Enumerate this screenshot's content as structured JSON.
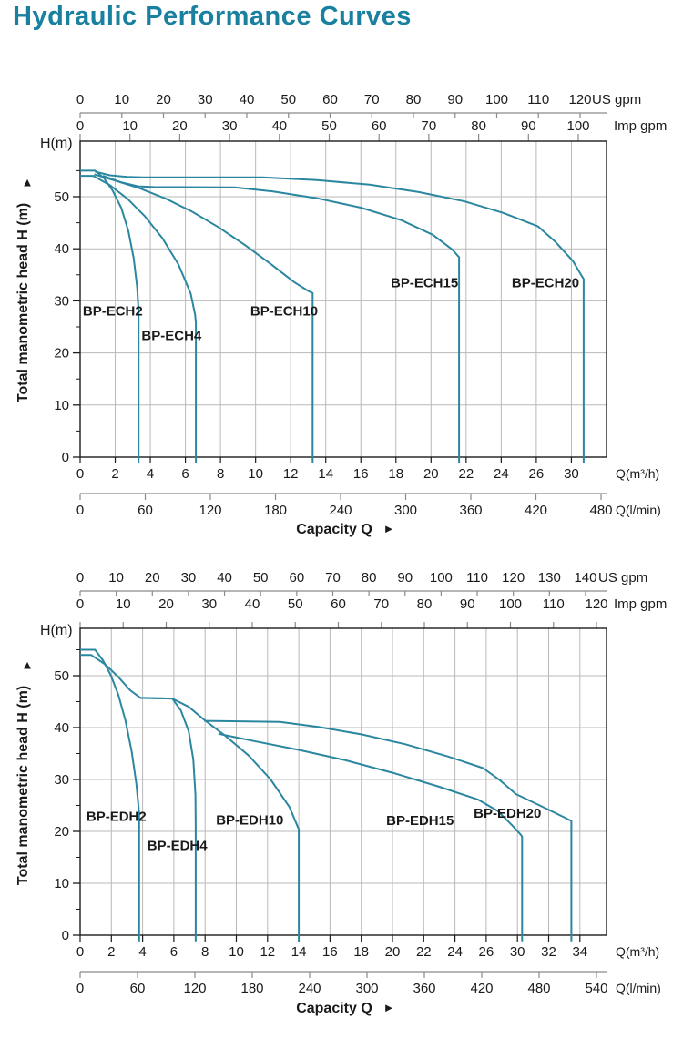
{
  "page_title": "Hydraulic Performance Curves",
  "colors": {
    "title": "#19809f",
    "curve": "#2b87a0",
    "grid": "#b9b9b9",
    "axis": "#1c1c1c",
    "ruler": "#8a8a8a",
    "text": "#1a1a1a"
  },
  "chart_data": [
    {
      "type": "line",
      "series_family": "BP-ECH",
      "ylabel": "Total manometric head H (m)",
      "y_corner_label": "H(m)",
      "xlabel": "Capacity Q",
      "y_ticks": [
        0,
        10,
        20,
        30,
        40,
        50
      ],
      "ylim": [
        0,
        60.7
      ],
      "x_m3h": {
        "unit": "Q(m³/h)",
        "tick_values": [
          0,
          2,
          4,
          6,
          8,
          10,
          12,
          14,
          16,
          18,
          20,
          22,
          24,
          26,
          30
        ]
      },
      "x_lmin": {
        "unit": "Q(l/min)",
        "tick_values": [
          0,
          60,
          120,
          180,
          240,
          300,
          360,
          420,
          480
        ],
        "max": 480
      },
      "us_gpm": {
        "unit": "US gpm",
        "tick_values": [
          0,
          10,
          20,
          30,
          40,
          50,
          60,
          70,
          80,
          90,
          100,
          110,
          120
        ],
        "max": 120
      },
      "imp_gpm": {
        "unit": "Imp gpm",
        "tick_values": [
          0,
          10,
          20,
          30,
          40,
          50,
          60,
          70,
          80,
          90,
          100
        ],
        "max": 100
      },
      "series": [
        {
          "name": "BP-ECH2",
          "label_pos": [
            0.15,
            27.2
          ],
          "points": [
            [
              0,
              55
            ],
            [
              0.85,
              55
            ],
            [
              1.35,
              53.6
            ],
            [
              1.85,
              51.2
            ],
            [
              2.35,
              47.8
            ],
            [
              2.75,
              43.4
            ],
            [
              3.05,
              38.2
            ],
            [
              3.25,
              32.6
            ],
            [
              3.33,
              28
            ],
            [
              3.33,
              -1.2
            ]
          ]
        },
        {
          "name": "BP-ECH4",
          "label_pos": [
            3.5,
            22.5
          ],
          "points": [
            [
              0,
              54
            ],
            [
              0.75,
              54
            ],
            [
              1.7,
              52.2
            ],
            [
              2.7,
              49.6
            ],
            [
              3.7,
              46.2
            ],
            [
              4.7,
              42
            ],
            [
              5.6,
              37
            ],
            [
              6.3,
              31.4
            ],
            [
              6.55,
              27.4
            ],
            [
              6.6,
              25.8
            ],
            [
              6.6,
              -1.2
            ]
          ]
        },
        {
          "name": "BP-ECH10",
          "label_pos": [
            9.7,
            27.2
          ],
          "points": [
            [
              0.8,
              54.3
            ],
            [
              2.0,
              53.1
            ],
            [
              3.4,
              51.6
            ],
            [
              4.9,
              49.6
            ],
            [
              6.4,
              47.1
            ],
            [
              7.9,
              44.1
            ],
            [
              9.4,
              40.7
            ],
            [
              10.9,
              37
            ],
            [
              12.2,
              33.6
            ],
            [
              13.0,
              31.9
            ],
            [
              13.25,
              31.5
            ],
            [
              13.25,
              -1.2
            ]
          ]
        },
        {
          "name": "BP-ECH15",
          "label_pos": [
            17.7,
            32.6
          ],
          "points": [
            [
              1.3,
              54
            ],
            [
              2.3,
              52.8
            ],
            [
              3.3,
              52
            ],
            [
              4.2,
              51.85
            ],
            [
              8.8,
              51.8
            ],
            [
              11,
              51
            ],
            [
              13.5,
              49.7
            ],
            [
              16,
              47.9
            ],
            [
              18.3,
              45.5
            ],
            [
              20.1,
              42.7
            ],
            [
              21.2,
              39.9
            ],
            [
              21.6,
              38.4
            ],
            [
              21.6,
              -1.2
            ]
          ]
        },
        {
          "name": "BP-ECH20",
          "label_pos": [
            24.6,
            32.6
          ],
          "points": [
            [
              0.85,
              54.8
            ],
            [
              1.7,
              54.1
            ],
            [
              2.7,
              53.8
            ],
            [
              3.6,
              53.7
            ],
            [
              10.4,
              53.7
            ],
            [
              13.5,
              53.2
            ],
            [
              16.5,
              52.3
            ],
            [
              19.3,
              50.9
            ],
            [
              21.9,
              49.1
            ],
            [
              24.1,
              46.9
            ],
            [
              26.2,
              44.3
            ],
            [
              28.2,
              41.3
            ],
            [
              30.2,
              37.6
            ],
            [
              31.1,
              35
            ],
            [
              31.4,
              34.2
            ],
            [
              31.4,
              -1.2
            ]
          ]
        }
      ]
    },
    {
      "type": "line",
      "series_family": "BP-EDH",
      "ylabel": "Total manometric head H (m)",
      "y_corner_label": "H(m)",
      "xlabel": "Capacity Q",
      "y_ticks": [
        0,
        10,
        20,
        30,
        40,
        50
      ],
      "ylim": [
        0,
        59.1
      ],
      "x_m3h": {
        "unit": "Q(m³/h)",
        "tick_values": [
          0,
          2,
          4,
          6,
          8,
          10,
          12,
          14,
          16,
          18,
          20,
          22,
          24,
          26,
          30,
          32,
          34
        ]
      },
      "x_lmin": {
        "unit": "Q(l/min)",
        "tick_values": [
          0,
          60,
          120,
          180,
          240,
          300,
          360,
          420,
          480,
          540
        ],
        "max": 540
      },
      "us_gpm": {
        "unit": "US gpm",
        "tick_values": [
          0,
          10,
          20,
          30,
          40,
          50,
          60,
          70,
          80,
          90,
          100,
          110,
          120,
          130,
          140
        ],
        "max": 140
      },
      "imp_gpm": {
        "unit": "Imp gpm",
        "tick_values": [
          0,
          10,
          20,
          30,
          40,
          50,
          60,
          70,
          80,
          90,
          100,
          110,
          120
        ],
        "max": 120
      },
      "series": [
        {
          "name": "BP-EDH2",
          "label_pos": [
            0.4,
            22
          ],
          "points": [
            [
              0,
              55
            ],
            [
              0.95,
              55
            ],
            [
              1.45,
              53
            ],
            [
              1.95,
              50.2
            ],
            [
              2.45,
              46.3
            ],
            [
              2.9,
              41.4
            ],
            [
              3.3,
              35.4
            ],
            [
              3.6,
              29.2
            ],
            [
              3.78,
              23.5
            ],
            [
              3.78,
              -1.2
            ]
          ]
        },
        {
          "name": "BP-EDH4",
          "label_pos": [
            4.3,
            16.4
          ],
          "points": [
            [
              0,
              54
            ],
            [
              0.7,
              54
            ],
            [
              1.6,
              52.2
            ],
            [
              2.4,
              49.9
            ],
            [
              3.2,
              47.2
            ],
            [
              3.85,
              45.75
            ],
            [
              5.9,
              45.6
            ],
            [
              6.45,
              43.3
            ],
            [
              6.95,
              39.3
            ],
            [
              7.25,
              33.8
            ],
            [
              7.38,
              27
            ],
            [
              7.4,
              20.8
            ],
            [
              7.4,
              -1.2
            ]
          ]
        },
        {
          "name": "BP-EDH10",
          "label_pos": [
            8.7,
            21.3
          ],
          "points": [
            [
              3.85,
              45.7
            ],
            [
              5.9,
              45.6
            ],
            [
              6.95,
              44
            ],
            [
              7.95,
              41.5
            ],
            [
              9.3,
              38.4
            ],
            [
              10.8,
              34.6
            ],
            [
              12.2,
              30
            ],
            [
              13.4,
              24.7
            ],
            [
              14.0,
              20.4
            ],
            [
              14.0,
              -1.2
            ]
          ]
        },
        {
          "name": "BP-EDH15",
          "label_pos": [
            19.6,
            21.2
          ],
          "points": [
            [
              8.85,
              38.8
            ],
            [
              11,
              37.5
            ],
            [
              14,
              35.7
            ],
            [
              17,
              33.7
            ],
            [
              20,
              31.3
            ],
            [
              23,
              28.6
            ],
            [
              25.5,
              26.1
            ],
            [
              27.5,
              23.9
            ],
            [
              29.3,
              21.2
            ],
            [
              30.2,
              19.4
            ],
            [
              30.3,
              19
            ],
            [
              30.3,
              -1.2
            ]
          ]
        },
        {
          "name": "BP-EDH20",
          "label_pos": [
            25.2,
            22.6
          ],
          "points": [
            [
              7.95,
              41.3
            ],
            [
              12.8,
              41.1
            ],
            [
              15.3,
              40.1
            ],
            [
              18,
              38.7
            ],
            [
              20.8,
              36.8
            ],
            [
              23.5,
              34.5
            ],
            [
              25.8,
              32.2
            ],
            [
              27.8,
              29.8
            ],
            [
              29.8,
              27.2
            ],
            [
              31.5,
              24.9
            ],
            [
              33,
              22.7
            ],
            [
              33.45,
              22
            ],
            [
              33.45,
              -1.2
            ]
          ]
        }
      ]
    }
  ]
}
